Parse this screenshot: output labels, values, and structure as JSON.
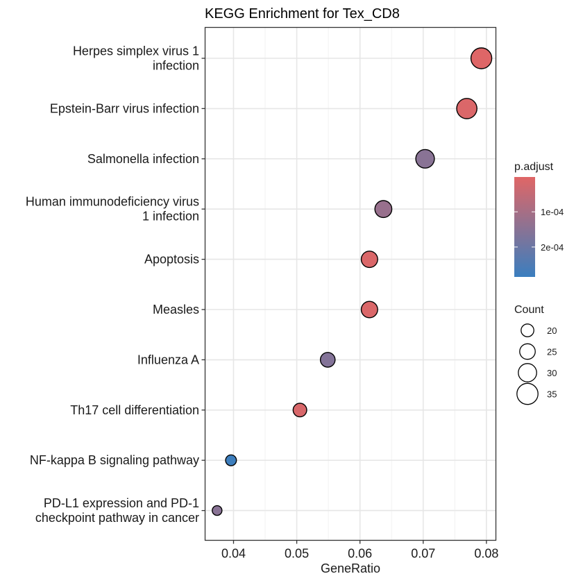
{
  "chart_data": {
    "type": "scatter",
    "title": "KEGG Enrichment for Tex_CD8",
    "xlabel": "GeneRatio",
    "ylabel": "",
    "xlim": [
      0.0355,
      0.0815
    ],
    "x_ticks": [
      0.04,
      0.05,
      0.06,
      0.07,
      0.08
    ],
    "x_tick_labels": [
      "0.04",
      "0.05",
      "0.06",
      "0.07",
      "0.08"
    ],
    "grid": true,
    "categories": [
      [
        "Herpes simplex virus 1",
        "infection"
      ],
      [
        "Epstein-Barr virus infection"
      ],
      [
        "Salmonella infection"
      ],
      [
        "Human immunodeficiency virus",
        "1 infection"
      ],
      [
        "Apoptosis"
      ],
      [
        "Measles"
      ],
      [
        "Influenza A"
      ],
      [
        "Th17 cell differentiation"
      ],
      [
        "NF-kappa B signaling pathway"
      ],
      [
        "PD-L1 expression and PD-1",
        "checkpoint pathway in cancer"
      ]
    ],
    "points": [
      {
        "gene_ratio": 0.0792,
        "count": 37,
        "p_adjust": 4e-06
      },
      {
        "gene_ratio": 0.0769,
        "count": 36,
        "p_adjust": 1e-05
      },
      {
        "gene_ratio": 0.0703,
        "count": 33,
        "p_adjust": 0.00015
      },
      {
        "gene_ratio": 0.0637,
        "count": 30,
        "p_adjust": 0.000125
      },
      {
        "gene_ratio": 0.0615,
        "count": 29,
        "p_adjust": 1.2e-05
      },
      {
        "gene_ratio": 0.0615,
        "count": 29,
        "p_adjust": 1.2e-05
      },
      {
        "gene_ratio": 0.0549,
        "count": 26,
        "p_adjust": 0.00016
      },
      {
        "gene_ratio": 0.0505,
        "count": 24,
        "p_adjust": 1.5e-05
      },
      {
        "gene_ratio": 0.0396,
        "count": 19,
        "p_adjust": 0.00028
      },
      {
        "gene_ratio": 0.0374,
        "count": 17,
        "p_adjust": 0.00015
      }
    ],
    "legend_color": {
      "title": "p.adjust",
      "placement": "right",
      "range": [
        1e-06,
        0.000285
      ],
      "ticks": [
        0.0001,
        0.0002
      ],
      "tick_labels": [
        "1e-04",
        "2e-04"
      ],
      "low_color": "#e06666",
      "high_color": "#3a7ebf"
    },
    "legend_size": {
      "title": "Count",
      "placement": "right",
      "values": [
        20,
        25,
        30,
        35
      ],
      "labels": [
        "20",
        "25",
        "30",
        "35"
      ]
    }
  }
}
